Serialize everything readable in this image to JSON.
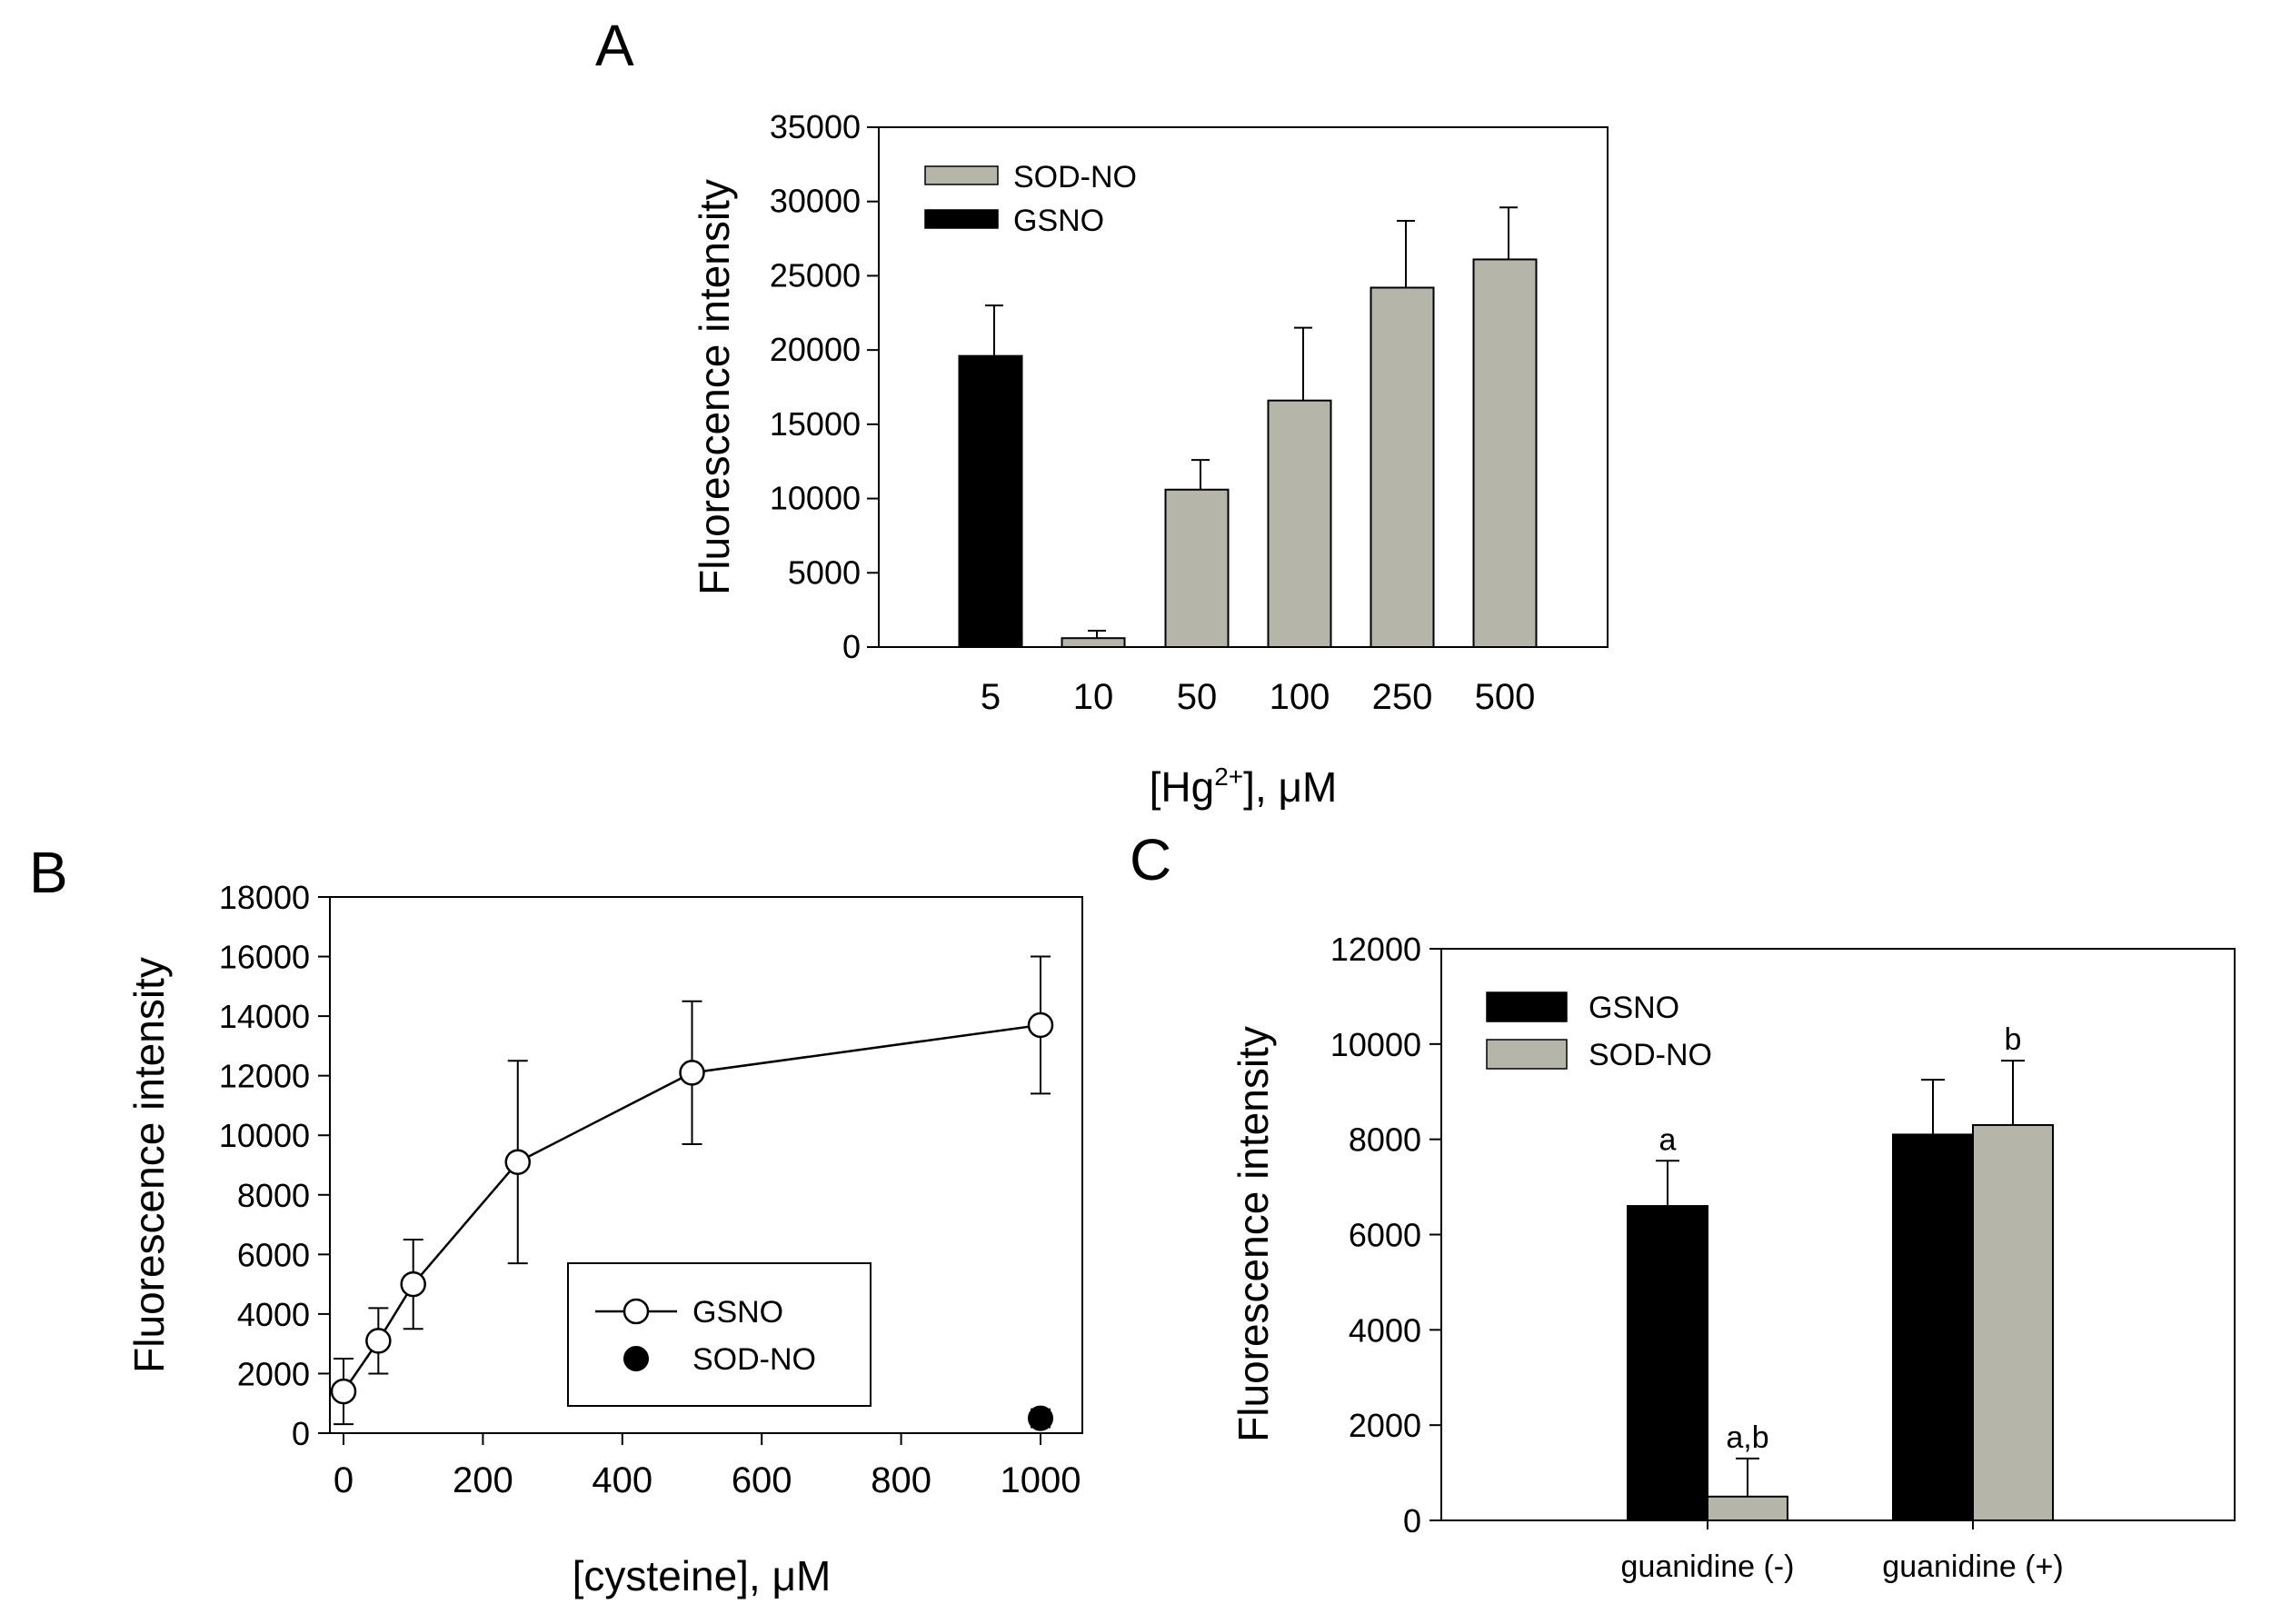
{
  "chart_data": [
    {
      "panel": "A",
      "type": "bar",
      "xlabel": "[Hg",
      "xlabel_sup": "2+",
      "xlabel_suffix": "], μM",
      "ylabel": "Fluorescence intensity",
      "ylim": [
        0,
        35000
      ],
      "yticks": [
        0,
        5000,
        10000,
        15000,
        20000,
        25000,
        30000,
        35000
      ],
      "categories": [
        "5",
        "10",
        "50",
        "100",
        "250",
        "500"
      ],
      "series": [
        {
          "name": "GSNO",
          "color": "#000000",
          "values": [
            19600,
            null,
            null,
            null,
            null,
            null
          ],
          "errors": [
            3400,
            null,
            null,
            null,
            null,
            null
          ]
        },
        {
          "name": "SOD-NO",
          "color": "#b5b5aa",
          "values": [
            null,
            600,
            10600,
            16600,
            24200,
            26100
          ],
          "errors": [
            null,
            500,
            2000,
            4900,
            4500,
            3500
          ]
        }
      ],
      "legend": [
        {
          "label": "SOD-NO",
          "color": "#b5b5aa"
        },
        {
          "label": "GSNO",
          "color": "#000000"
        }
      ],
      "legend_position": "top-left"
    },
    {
      "panel": "B",
      "type": "line",
      "xlabel": "[cysteine], μM",
      "ylabel": "Fluorescence intensity",
      "xlim": [
        0,
        1000
      ],
      "ylim": [
        0,
        18000
      ],
      "xticks": [
        0,
        200,
        400,
        600,
        800,
        1000
      ],
      "yticks": [
        0,
        2000,
        4000,
        6000,
        8000,
        10000,
        12000,
        14000,
        16000,
        18000
      ],
      "series": [
        {
          "name": "GSNO",
          "marker": "open-circle",
          "x": [
            0,
            50,
            100,
            250,
            500,
            1000
          ],
          "y": [
            1400,
            3100,
            5000,
            9100,
            12100,
            13700
          ],
          "errors": [
            1100,
            1100,
            1500,
            3400,
            2400,
            2300
          ]
        },
        {
          "name": "SOD-NO",
          "marker": "filled-circle",
          "x": [
            1000
          ],
          "y": [
            500
          ],
          "errors": [
            300
          ]
        }
      ],
      "legend": [
        {
          "label": "GSNO",
          "marker": "open-circle"
        },
        {
          "label": "SOD-NO",
          "marker": "filled-circle"
        }
      ],
      "legend_position": "lower-right"
    },
    {
      "panel": "C",
      "type": "bar",
      "xlabel": "",
      "ylabel": "Fluorescence intensity",
      "ylim": [
        0,
        12000
      ],
      "yticks": [
        0,
        2000,
        4000,
        6000,
        8000,
        10000,
        12000
      ],
      "categories": [
        "guanidine (-)",
        "guanidine (+)"
      ],
      "series": [
        {
          "name": "GSNO",
          "color": "#000000",
          "values": [
            6600,
            8100
          ],
          "errors": [
            950,
            1150
          ]
        },
        {
          "name": "SOD-NO",
          "color": "#b5b5aa",
          "values": [
            500,
            8300
          ],
          "errors": [
            800,
            1350
          ]
        }
      ],
      "annotations": [
        {
          "category": "guanidine (-)",
          "series": "GSNO",
          "text": "a"
        },
        {
          "category": "guanidine (-)",
          "series": "SOD-NO",
          "text": "a,b"
        },
        {
          "category": "guanidine (+)",
          "series": "SOD-NO",
          "text": "b"
        }
      ],
      "legend": [
        {
          "label": "GSNO",
          "color": "#000000"
        },
        {
          "label": "SOD-NO",
          "color": "#b5b5aa"
        }
      ],
      "legend_position": "top-left"
    }
  ]
}
